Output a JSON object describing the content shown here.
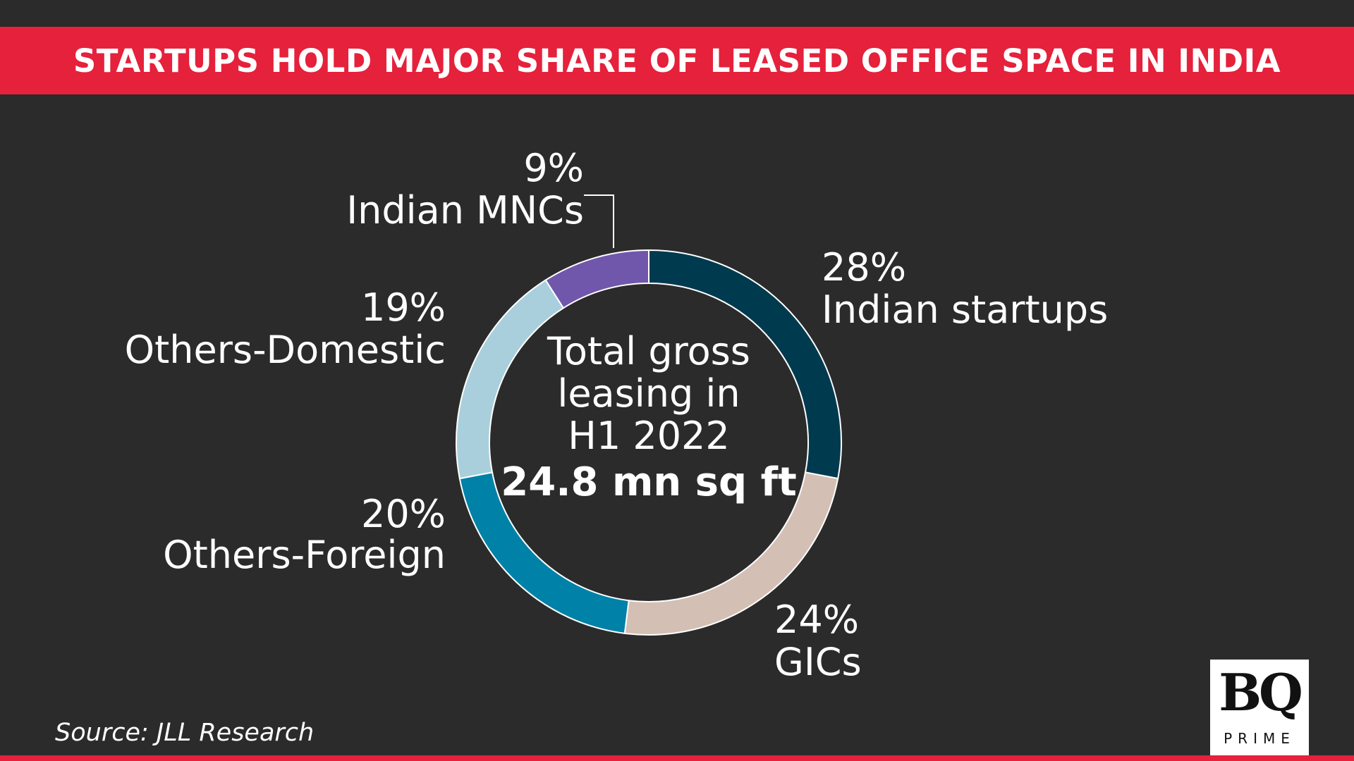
{
  "header": {
    "title": "STARTUPS HOLD MAJOR SHARE OF LEASED OFFICE SPACE IN INDIA"
  },
  "chart_data": {
    "type": "pie",
    "categories": [
      "Indian startups",
      "GICs",
      "Others-Foreign",
      "Others-Domestic",
      "Indian MNCs"
    ],
    "values": [
      28,
      24,
      20,
      19,
      9
    ],
    "value_labels": [
      "28%",
      "24%",
      "20%",
      "19%",
      "9%"
    ],
    "colors": [
      "#003a4f",
      "#d4bfb4",
      "#0081a7",
      "#a9cfdc",
      "#7157ab"
    ],
    "center": {
      "lines": [
        "Total gross",
        "leasing in",
        "H1 2022"
      ],
      "total": "24.8 mn sq ft"
    }
  },
  "footer": {
    "source": "Source: JLL Research"
  },
  "logo": {
    "mark": "BQ",
    "sub": "PRIME"
  }
}
